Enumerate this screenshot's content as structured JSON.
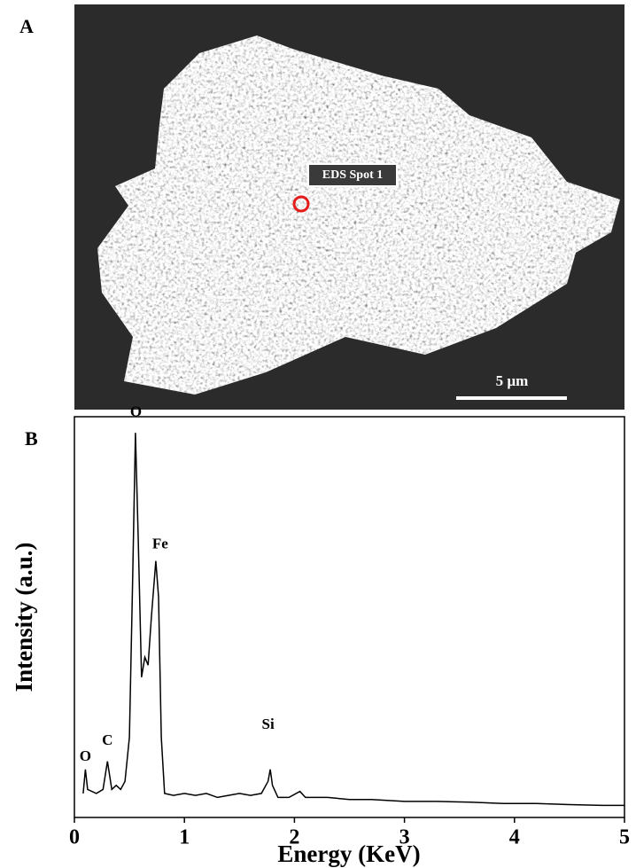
{
  "panel_a": {
    "label": "A",
    "spot_label": "EDS Spot 1",
    "scale_bar": "5 µm"
  },
  "panel_b": {
    "label": "B"
  },
  "chart_data": {
    "type": "line",
    "xlabel": "Energy (KeV)",
    "ylabel": "Intensity (a.u.)",
    "xlim": [
      0,
      5
    ],
    "xticks": [
      0,
      1,
      2,
      3,
      4,
      5
    ],
    "ylim": [
      0,
      100
    ],
    "color": "#000000",
    "x": [
      0.08,
      0.1,
      0.12,
      0.2,
      0.26,
      0.3,
      0.34,
      0.38,
      0.42,
      0.46,
      0.5,
      0.53,
      0.555,
      0.58,
      0.61,
      0.64,
      0.67,
      0.7,
      0.74,
      0.765,
      0.79,
      0.82,
      0.9,
      1.0,
      1.1,
      1.2,
      1.3,
      1.4,
      1.5,
      1.6,
      1.7,
      1.76,
      1.78,
      1.8,
      1.85,
      1.95,
      2.05,
      2.1,
      2.3,
      2.5,
      2.7,
      3.0,
      3.3,
      3.6,
      3.9,
      4.2,
      4.5,
      4.8,
      5.0
    ],
    "values": [
      6,
      12,
      7,
      6,
      7,
      14,
      7,
      8,
      7,
      9,
      20,
      60,
      96,
      70,
      35,
      40,
      38,
      50,
      64,
      55,
      20,
      6,
      5.5,
      6,
      5.5,
      6,
      5,
      5.5,
      6,
      5.5,
      6,
      9,
      12,
      8,
      5,
      5,
      6.5,
      5,
      5,
      4.5,
      4.5,
      4,
      4,
      3.8,
      3.5,
      3.5,
      3.2,
      3,
      3
    ],
    "annotations": [
      {
        "text": "O",
        "x": 0.1,
        "y": 15
      },
      {
        "text": "C",
        "x": 0.3,
        "y": 19
      },
      {
        "text": "O",
        "x": 0.56,
        "y": 101
      },
      {
        "text": "Fe",
        "x": 0.78,
        "y": 68
      },
      {
        "text": "Si",
        "x": 1.76,
        "y": 23
      }
    ]
  }
}
